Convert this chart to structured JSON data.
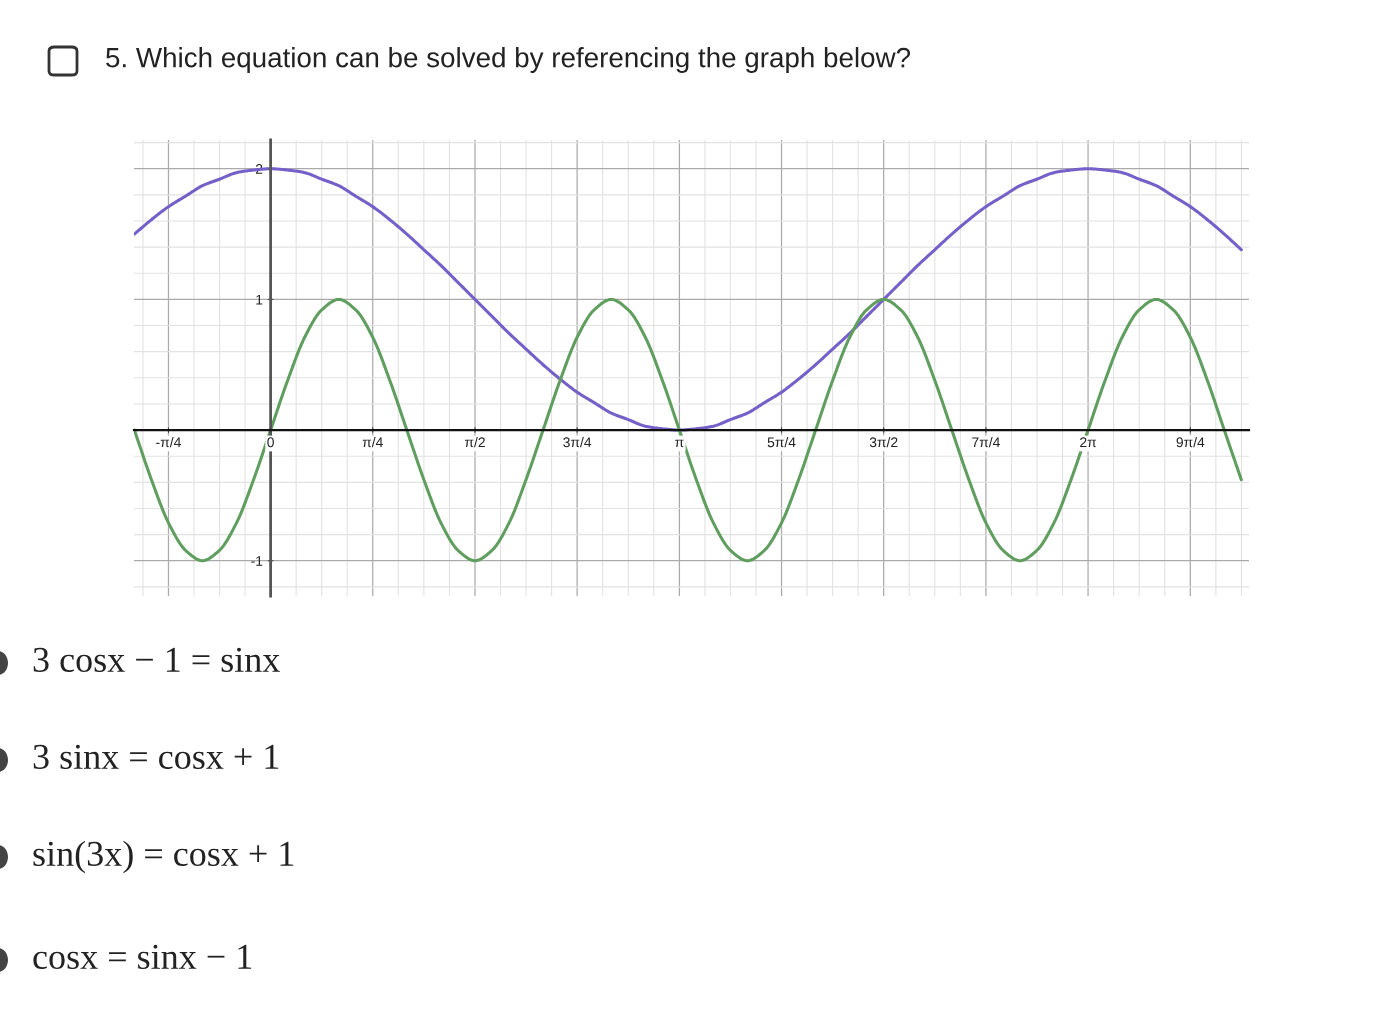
{
  "chart_data": {
    "type": "line",
    "title": "5. Which equation can be solved by referencing the graph below?",
    "annotations": [
      "3 cosx − 1 = sinx",
      "3 sinx = cosx + 1",
      "sin(3x) = cosx + 1",
      "cosx = sinx − 1"
    ],
    "x": [
      -1.047,
      -0.916,
      -0.785,
      -0.654,
      -0.524,
      -0.393,
      -0.262,
      -0.131,
      0,
      0.131,
      0.262,
      0.393,
      0.524,
      0.654,
      0.785,
      0.916,
      1.047,
      1.178,
      1.309,
      1.44,
      1.571,
      1.702,
      1.833,
      1.963,
      2.094,
      2.225,
      2.356,
      2.487,
      2.618,
      2.749,
      2.88,
      3.011,
      3.142,
      3.272,
      3.403,
      3.534,
      3.665,
      3.796,
      3.927,
      4.058,
      4.189,
      4.32,
      4.451,
      4.581,
      4.712,
      4.843,
      4.974,
      5.105,
      5.236,
      5.367,
      5.498,
      5.629,
      5.76,
      5.89,
      6.021,
      6.152,
      6.283,
      6.414,
      6.545,
      6.676,
      6.807,
      6.938,
      7.069,
      7.2,
      7.33,
      7.461
    ],
    "series": [
      {
        "color": "#7460c8",
        "values": [
          1.5,
          1.61,
          1.71,
          1.79,
          1.87,
          1.92,
          1.97,
          1.99,
          2.0,
          1.99,
          1.97,
          1.92,
          1.87,
          1.79,
          1.71,
          1.61,
          1.5,
          1.38,
          1.26,
          1.13,
          1.0,
          0.87,
          0.74,
          0.62,
          0.5,
          0.39,
          0.29,
          0.21,
          0.13,
          0.08,
          0.03,
          0.01,
          0.0,
          0.01,
          0.03,
          0.08,
          0.13,
          0.21,
          0.29,
          0.39,
          0.5,
          0.62,
          0.74,
          0.87,
          1.0,
          1.13,
          1.26,
          1.38,
          1.5,
          1.61,
          1.71,
          1.79,
          1.87,
          1.92,
          1.97,
          1.99,
          2.0,
          1.99,
          1.97,
          1.92,
          1.87,
          1.79,
          1.71,
          1.61,
          1.5,
          1.38
        ]
      },
      {
        "color": "#5f9e5f",
        "values": [
          0,
          -0.38,
          -0.71,
          -0.92,
          -1,
          -0.92,
          -0.71,
          -0.38,
          0,
          0.38,
          0.71,
          0.92,
          1,
          0.92,
          0.71,
          0.38,
          0,
          -0.38,
          -0.71,
          -0.92,
          -1,
          -0.92,
          -0.71,
          -0.38,
          0,
          0.38,
          0.71,
          0.92,
          1,
          0.92,
          0.71,
          0.38,
          0,
          -0.38,
          -0.71,
          -0.92,
          -1,
          -0.92,
          -0.71,
          -0.38,
          0,
          0.38,
          0.71,
          0.92,
          1,
          0.92,
          0.71,
          0.38,
          0,
          -0.38,
          -0.71,
          -0.92,
          -1,
          -0.92,
          -0.71,
          -0.38,
          0,
          0.38,
          0.71,
          0.92,
          1,
          0.92,
          0.71,
          0.38,
          0,
          -0.38
        ]
      }
    ],
    "xlim": [
      -1.05,
      7.52
    ],
    "ylim": [
      -1.27,
      2.22
    ],
    "xticks": [
      {
        "value": -0.785,
        "label": "-π/4"
      },
      0,
      {
        "value": 0.785,
        "label": "π/4"
      },
      {
        "value": 1.571,
        "label": "π/2"
      },
      {
        "value": 2.356,
        "label": "3π/4"
      },
      {
        "value": 3.142,
        "label": "π"
      },
      {
        "value": 3.927,
        "label": "5π/4"
      },
      {
        "value": 4.712,
        "label": "3π/2"
      },
      {
        "value": 5.498,
        "label": "7π/4"
      },
      {
        "value": 6.283,
        "label": "2π"
      },
      {
        "value": 7.069,
        "label": "9π/4"
      }
    ],
    "yticks": [
      -1,
      {
        "value": 0,
        "label": null
      },
      1,
      2
    ],
    "grid": true,
    "marker": "none",
    "line_style": "solid"
  }
}
